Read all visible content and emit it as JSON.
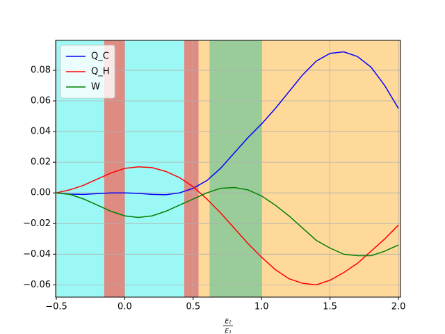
{
  "chart_data": {
    "type": "line",
    "x": [
      -0.5,
      -0.4,
      -0.3,
      -0.2,
      -0.1,
      0.0,
      0.1,
      0.2,
      0.3,
      0.4,
      0.5,
      0.6,
      0.7,
      0.8,
      0.9,
      1.0,
      1.1,
      1.2,
      1.3,
      1.4,
      1.5,
      1.6,
      1.7,
      1.8,
      1.9,
      2.0
    ],
    "series": [
      {
        "name": "Q_C",
        "color": "#0000ff",
        "values": [
          0,
          -0.0008,
          -0.001,
          -0.0005,
          0,
          0,
          -0.0003,
          -0.001,
          -0.0012,
          0,
          0.003,
          0.008,
          0.016,
          0.026,
          0.036,
          0.045,
          0.055,
          0.066,
          0.077,
          0.086,
          0.091,
          0.092,
          0.089,
          0.082,
          0.07,
          0.055
        ]
      },
      {
        "name": "Q_H",
        "color": "#ff0000",
        "values": [
          0,
          0.002,
          0.005,
          0.009,
          0.013,
          0.016,
          0.017,
          0.0165,
          0.014,
          0.01,
          0.004,
          -0.004,
          -0.013,
          -0.023,
          -0.033,
          -0.042,
          -0.05,
          -0.056,
          -0.059,
          -0.06,
          -0.057,
          -0.052,
          -0.046,
          -0.038,
          -0.03,
          -0.021
        ]
      },
      {
        "name": "W",
        "color": "#008000",
        "values": [
          0,
          -0.001,
          -0.004,
          -0.008,
          -0.012,
          -0.015,
          -0.016,
          -0.015,
          -0.012,
          -0.008,
          -0.004,
          0,
          0.003,
          0.0035,
          0.002,
          -0.002,
          -0.008,
          -0.015,
          -0.023,
          -0.031,
          -0.036,
          -0.04,
          -0.041,
          -0.041,
          -0.038,
          -0.034
        ]
      }
    ],
    "regions": [
      {
        "start": -0.505,
        "end": -0.15,
        "color": "#9cf8f4"
      },
      {
        "start": -0.15,
        "end": 0.0,
        "color": "#de8b82"
      },
      {
        "start": 0.0,
        "end": 0.435,
        "color": "#9cf8f4"
      },
      {
        "start": 0.435,
        "end": 0.54,
        "color": "#de8b82"
      },
      {
        "start": 0.54,
        "end": 0.62,
        "color": "#fed99a"
      },
      {
        "start": 0.62,
        "end": 1.0,
        "color": "#99cc99"
      },
      {
        "start": 1.0,
        "end": 2.015,
        "color": "#fed99a"
      }
    ],
    "xlabel": {
      "numerator": "E₂",
      "denominator": "E₁"
    },
    "xlim": [
      -0.505,
      2.015
    ],
    "ylim": [
      -0.068,
      0.0995
    ],
    "xticks": [
      {
        "value": -0.5,
        "label": "−0.5"
      },
      {
        "value": 0,
        "label": "0.0"
      },
      0.5,
      {
        "value": 1,
        "label": "1.0"
      },
      1.5,
      {
        "value": 2,
        "label": "2.0"
      }
    ],
    "yticks": [
      {
        "value": -0.06,
        "label": "−0.06"
      },
      {
        "value": -0.04,
        "label": "−0.04"
      },
      {
        "value": -0.02,
        "label": "−0.02"
      },
      {
        "value": 0,
        "label": "0.00"
      },
      0.02,
      0.04,
      0.06,
      0.08
    ],
    "grid": true,
    "legend": "upper left"
  }
}
